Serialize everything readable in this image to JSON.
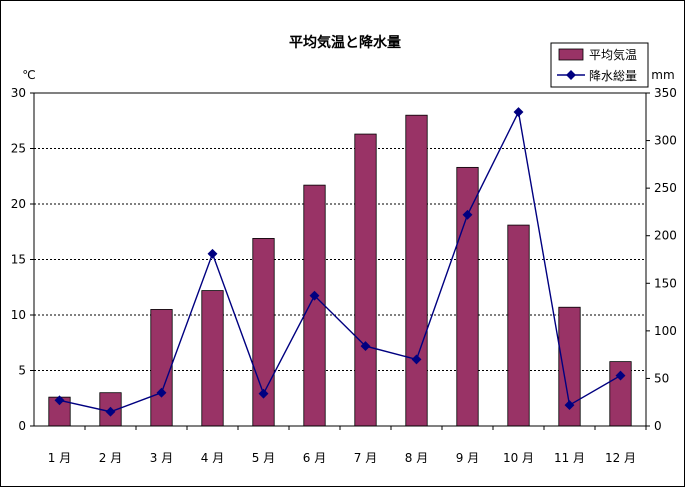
{
  "chart_data": {
    "type": "bar",
    "title": "平均気温と降水量",
    "categories": [
      "1 月",
      "2 月",
      "3 月",
      "4 月",
      "5 月",
      "6 月",
      "7 月",
      "8 月",
      "9 月",
      "10 月",
      "11 月",
      "12 月"
    ],
    "left_unit": "℃",
    "right_unit": "mm",
    "ylim_left": [
      0,
      30
    ],
    "ylim_right": [
      0,
      350
    ],
    "left_ticks": [
      0,
      5,
      10,
      15,
      20,
      25,
      30
    ],
    "right_ticks": [
      0,
      50,
      100,
      150,
      200,
      250,
      300,
      350
    ],
    "grid": true,
    "legend_position": "top-right",
    "series": [
      {
        "name": "平均気温",
        "type": "bar",
        "axis": "left",
        "color": "#993366",
        "values": [
          2.6,
          3.0,
          10.5,
          12.2,
          16.9,
          21.7,
          26.3,
          28.0,
          23.3,
          18.1,
          10.7,
          5.8
        ]
      },
      {
        "name": "降水総量",
        "type": "line",
        "axis": "right",
        "color": "#000080",
        "values": [
          27,
          15,
          35,
          181,
          34,
          137,
          84,
          70,
          222,
          330,
          22,
          53
        ]
      }
    ]
  }
}
